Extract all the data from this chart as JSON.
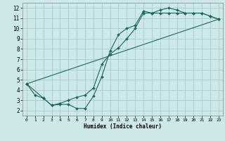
{
  "xlabel": "Humidex (Indice chaleur)",
  "background_color": "#cce8e8",
  "grid_color": "#aacccc",
  "line_color": "#1a6b5a",
  "xlim": [
    -0.5,
    23.5
  ],
  "ylim": [
    1.5,
    12.5
  ],
  "xticks": [
    0,
    1,
    2,
    3,
    4,
    5,
    6,
    7,
    8,
    9,
    10,
    11,
    12,
    13,
    14,
    15,
    16,
    17,
    18,
    19,
    20,
    21,
    22,
    23
  ],
  "yticks": [
    2,
    3,
    4,
    5,
    6,
    7,
    8,
    9,
    10,
    11,
    12
  ],
  "line1_x": [
    0,
    1,
    2,
    3,
    4,
    5,
    6,
    7,
    8,
    9,
    10,
    11,
    12,
    13,
    14,
    15,
    16,
    17,
    18,
    19,
    20,
    21,
    22,
    23
  ],
  "line1_y": [
    4.6,
    3.5,
    3.2,
    2.5,
    2.6,
    2.6,
    2.2,
    2.2,
    3.4,
    5.3,
    7.8,
    9.4,
    10.0,
    10.3,
    11.7,
    11.5,
    11.8,
    12.0,
    11.8,
    11.5,
    11.5,
    11.5,
    11.2,
    10.9
  ],
  "line2_x": [
    0,
    2,
    3,
    4,
    5,
    6,
    7,
    8,
    9,
    10,
    11,
    12,
    13,
    14,
    15,
    16,
    17,
    18,
    19,
    20,
    21,
    22,
    23
  ],
  "line2_y": [
    4.6,
    3.2,
    2.5,
    2.7,
    3.0,
    3.3,
    3.5,
    4.2,
    6.5,
    7.5,
    8.1,
    9.0,
    10.0,
    11.5,
    11.5,
    11.5,
    11.5,
    11.5,
    11.5,
    11.5,
    11.5,
    11.2,
    10.9
  ],
  "line3_x": [
    0,
    23
  ],
  "line3_y": [
    4.6,
    10.9
  ]
}
